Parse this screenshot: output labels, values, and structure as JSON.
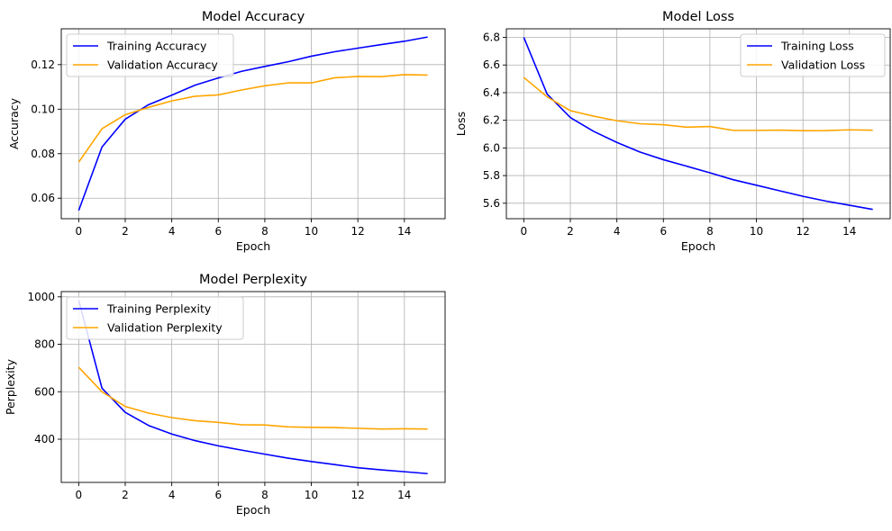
{
  "chart_data": [
    {
      "type": "line",
      "title": "Model Accuracy",
      "xlabel": "Epoch",
      "ylabel": "Accuracy",
      "xlim": [
        -0.75,
        15.75
      ],
      "ylim": [
        0.0508,
        0.1361
      ],
      "xticks": [
        0,
        2,
        4,
        6,
        8,
        10,
        12,
        14
      ],
      "xtick_labels": [
        "0",
        "2",
        "4",
        "6",
        "8",
        "10",
        "12",
        "14"
      ],
      "yticks": [
        0.06,
        0.08,
        0.1,
        0.12
      ],
      "ytick_labels": [
        "0.06",
        "0.08",
        "0.10",
        "0.12"
      ],
      "grid": true,
      "legend_position": "upper-left",
      "x": [
        0,
        1,
        2,
        3,
        4,
        5,
        6,
        7,
        8,
        9,
        10,
        11,
        12,
        13,
        14,
        15
      ],
      "series": [
        {
          "name": "Training Accuracy",
          "color": "#0000ff",
          "values": [
            0.0545,
            0.083,
            0.0955,
            0.102,
            0.1063,
            0.1108,
            0.114,
            0.117,
            0.1192,
            0.1213,
            0.1238,
            0.1258,
            0.1274,
            0.129,
            0.1305,
            0.1324
          ]
        },
        {
          "name": "Validation Accuracy",
          "color": "#ffa500",
          "values": [
            0.0762,
            0.0912,
            0.0975,
            0.1008,
            0.1037,
            0.1058,
            0.1064,
            0.1086,
            0.1105,
            0.1118,
            0.1118,
            0.1141,
            0.1147,
            0.1146,
            0.1155,
            0.1153
          ]
        }
      ]
    },
    {
      "type": "line",
      "title": "Model Loss",
      "xlabel": "Epoch",
      "ylabel": "Loss",
      "xlim": [
        -0.75,
        15.75
      ],
      "ylim": [
        5.488,
        6.862
      ],
      "xticks": [
        0,
        2,
        4,
        6,
        8,
        10,
        12,
        14
      ],
      "xtick_labels": [
        "0",
        "2",
        "4",
        "6",
        "8",
        "10",
        "12",
        "14"
      ],
      "yticks": [
        5.6,
        5.8,
        6.0,
        6.2,
        6.4,
        6.6,
        6.8
      ],
      "ytick_labels": [
        "5.6",
        "5.8",
        "6.0",
        "6.2",
        "6.4",
        "6.6",
        "6.8"
      ],
      "grid": true,
      "legend_position": "upper-right",
      "x": [
        0,
        1,
        2,
        3,
        4,
        5,
        6,
        7,
        8,
        9,
        10,
        11,
        12,
        13,
        14,
        15
      ],
      "series": [
        {
          "name": "Training Loss",
          "color": "#0000ff",
          "values": [
            6.8,
            6.39,
            6.22,
            6.12,
            6.04,
            5.97,
            5.915,
            5.868,
            5.82,
            5.77,
            5.73,
            5.69,
            5.65,
            5.615,
            5.585,
            5.555
          ]
        },
        {
          "name": "Validation Loss",
          "color": "#ffa500",
          "values": [
            6.51,
            6.37,
            6.27,
            6.23,
            6.197,
            6.175,
            6.168,
            6.15,
            6.155,
            6.127,
            6.127,
            6.129,
            6.125,
            6.126,
            6.131,
            6.128
          ]
        }
      ]
    },
    {
      "type": "line",
      "title": "Model Perplexity",
      "xlabel": "Epoch",
      "ylabel": "Perplexity",
      "xlim": [
        -0.75,
        15.75
      ],
      "ylim": [
        218,
        1022
      ],
      "xticks": [
        0,
        2,
        4,
        6,
        8,
        10,
        12,
        14
      ],
      "xtick_labels": [
        "0",
        "2",
        "4",
        "6",
        "8",
        "10",
        "12",
        "14"
      ],
      "yticks": [
        400,
        600,
        800,
        1000
      ],
      "ytick_labels": [
        "400",
        "600",
        "800",
        "1000"
      ],
      "grid": true,
      "legend_position": "upper-left",
      "x": [
        0,
        1,
        2,
        3,
        4,
        5,
        6,
        7,
        8,
        9,
        10,
        11,
        12,
        13,
        14,
        15
      ],
      "series": [
        {
          "name": "Training Perplexity",
          "color": "#0000ff",
          "values": [
            985,
            615,
            513,
            458,
            422,
            394,
            372,
            354,
            337,
            320,
            306,
            293,
            280,
            271,
            263,
            255
          ]
        },
        {
          "name": "Validation Perplexity",
          "color": "#ffa500",
          "values": [
            703,
            600,
            538,
            510,
            491,
            478,
            471,
            461,
            460,
            452,
            450,
            449,
            446,
            443,
            444,
            443
          ]
        }
      ]
    }
  ]
}
